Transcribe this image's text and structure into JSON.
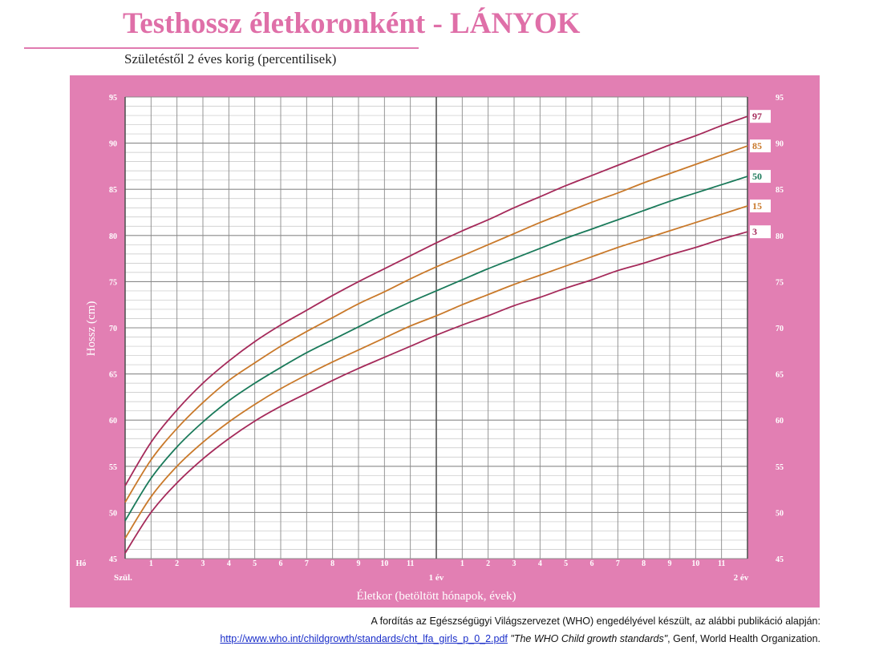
{
  "page": {
    "title": "Testhossz életkoronként - LÁNYOK",
    "subtitle": "Születéstől 2 éves korig (percentilisek)"
  },
  "footer": {
    "line1": "A fordítás az Egészségügyi Világszervezet (WHO) engedélyével készült, az alábbi publikáció alapján:",
    "link": "http://www.who.int/childgrowth/standards/cht_lfa_girls_p_0_2.pdf",
    "publication": "\"The WHO Child growth standards\"",
    "rest": ", Genf, World Health Organization."
  },
  "chart_data": {
    "type": "line",
    "title": "Testhossz életkoronként - LÁNYOK",
    "ylabel": "Hossz (cm)",
    "xlabel": "Életkor (betöltött hónapok, évek)",
    "month_label": "Hó",
    "x_range": [
      0,
      24
    ],
    "ylim": [
      45,
      95
    ],
    "y_ticks": [
      45,
      50,
      55,
      60,
      65,
      70,
      75,
      80,
      85,
      90,
      95
    ],
    "month_ticks": [
      1,
      2,
      3,
      4,
      5,
      6,
      7,
      8,
      9,
      10,
      11,
      1,
      2,
      3,
      4,
      5,
      6,
      7,
      8,
      9,
      10,
      11
    ],
    "year_labels": [
      {
        "x": 0,
        "label": "Szül."
      },
      {
        "x": 12,
        "label": "1 év"
      },
      {
        "x": 24,
        "label": "2 év"
      }
    ],
    "x": [
      0,
      1,
      2,
      3,
      4,
      5,
      6,
      7,
      8,
      9,
      10,
      11,
      12,
      13,
      14,
      15,
      16,
      17,
      18,
      19,
      20,
      21,
      22,
      23,
      24
    ],
    "series": [
      {
        "name": "97",
        "color": "#a52a5a",
        "values": [
          52.9,
          57.6,
          61.1,
          64.0,
          66.4,
          68.5,
          70.3,
          71.9,
          73.5,
          75.0,
          76.4,
          77.8,
          79.2,
          80.5,
          81.7,
          83.0,
          84.2,
          85.4,
          86.5,
          87.6,
          88.7,
          89.8,
          90.8,
          91.9,
          92.9
        ]
      },
      {
        "name": "85",
        "color": "#c9792a",
        "values": [
          51.1,
          55.7,
          59.1,
          61.9,
          64.3,
          66.2,
          68.0,
          69.6,
          71.1,
          72.6,
          73.9,
          75.3,
          76.6,
          77.8,
          79.0,
          80.2,
          81.4,
          82.5,
          83.6,
          84.6,
          85.7,
          86.7,
          87.7,
          88.7,
          89.7
        ]
      },
      {
        "name": "50",
        "color": "#1a7a5a",
        "values": [
          49.1,
          53.7,
          57.1,
          59.8,
          62.1,
          64.0,
          65.7,
          67.3,
          68.7,
          70.1,
          71.5,
          72.8,
          74.0,
          75.2,
          76.4,
          77.5,
          78.6,
          79.7,
          80.7,
          81.7,
          82.7,
          83.7,
          84.6,
          85.5,
          86.4
        ]
      },
      {
        "name": "15",
        "color": "#c9792a",
        "values": [
          47.2,
          51.7,
          55.0,
          57.6,
          59.8,
          61.7,
          63.4,
          64.9,
          66.3,
          67.6,
          68.9,
          70.2,
          71.3,
          72.5,
          73.6,
          74.7,
          75.7,
          76.7,
          77.7,
          78.7,
          79.6,
          80.5,
          81.4,
          82.3,
          83.2
        ]
      },
      {
        "name": "3",
        "color": "#a52a5a",
        "values": [
          45.6,
          50.0,
          53.2,
          55.8,
          58.0,
          59.9,
          61.5,
          62.9,
          64.3,
          65.6,
          66.8,
          68.0,
          69.2,
          70.3,
          71.3,
          72.4,
          73.3,
          74.3,
          75.2,
          76.2,
          77.0,
          77.9,
          78.7,
          79.6,
          80.4
        ]
      }
    ]
  }
}
